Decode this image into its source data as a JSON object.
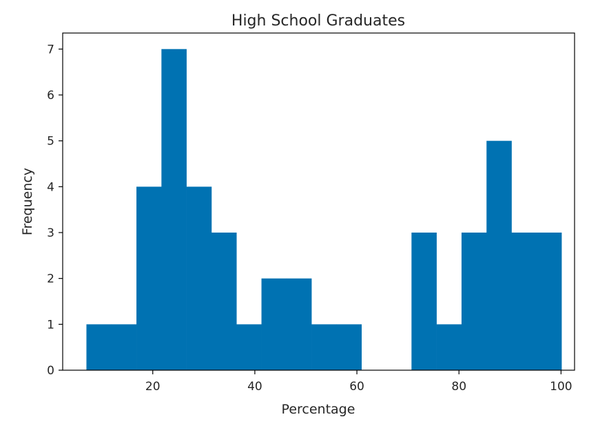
{
  "chart_data": {
    "type": "bar",
    "subtype": "histogram",
    "title": "High School Graduates",
    "xlabel": "Percentage",
    "ylabel": "Frequency",
    "xlim": [
      2.35,
      102.65
    ],
    "ylim": [
      0,
      7.35
    ],
    "xticks": [
      20,
      40,
      60,
      80,
      100
    ],
    "yticks": [
      0,
      1,
      2,
      3,
      4,
      5,
      6,
      7
    ],
    "bins": [
      {
        "x0": 7.0,
        "x1": 11.9,
        "value": 1
      },
      {
        "x0": 11.9,
        "x1": 16.8,
        "value": 1
      },
      {
        "x0": 16.8,
        "x1": 21.7,
        "value": 4
      },
      {
        "x0": 21.7,
        "x1": 26.6,
        "value": 7
      },
      {
        "x0": 26.6,
        "x1": 31.5,
        "value": 4
      },
      {
        "x0": 31.5,
        "x1": 36.4,
        "value": 3
      },
      {
        "x0": 36.4,
        "x1": 41.3,
        "value": 1
      },
      {
        "x0": 41.3,
        "x1": 46.2,
        "value": 2
      },
      {
        "x0": 46.2,
        "x1": 51.1,
        "value": 2
      },
      {
        "x0": 51.1,
        "x1": 56.0,
        "value": 1
      },
      {
        "x0": 56.0,
        "x1": 60.9,
        "value": 1
      },
      {
        "x0": 60.9,
        "x1": 65.8,
        "value": 0
      },
      {
        "x0": 65.8,
        "x1": 70.7,
        "value": 0
      },
      {
        "x0": 70.7,
        "x1": 75.6,
        "value": 3
      },
      {
        "x0": 75.6,
        "x1": 80.5,
        "value": 1
      },
      {
        "x0": 80.5,
        "x1": 85.4,
        "value": 3
      },
      {
        "x0": 85.4,
        "x1": 90.3,
        "value": 5
      },
      {
        "x0": 90.3,
        "x1": 95.2,
        "value": 3
      },
      {
        "x0": 95.2,
        "x1": 100.1,
        "value": 3
      }
    ],
    "bar_color": "#0072b2",
    "grid": false,
    "legend": "none"
  }
}
